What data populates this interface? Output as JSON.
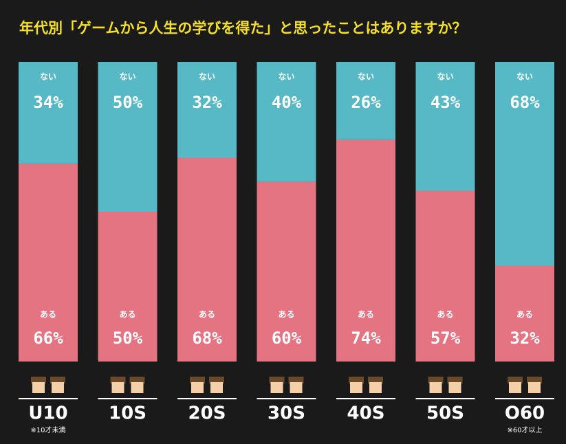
{
  "chart_data": {
    "type": "stacked_bar_100",
    "title": "年代別「ゲームから人生の学びを得た」と思ったことはありますか？",
    "categories": [
      "U10",
      "10S",
      "20S",
      "30S",
      "40S",
      "50S",
      "O60"
    ],
    "category_notes": [
      "※10才未満",
      null,
      null,
      null,
      null,
      null,
      "※60才以上"
    ],
    "ylim": [
      0,
      100
    ],
    "series": [
      {
        "name": "ある",
        "color": "#e57483",
        "values": [
          66,
          50,
          68,
          60,
          74,
          57,
          32
        ],
        "value_labels": [
          "66%",
          "50%",
          "68%",
          "60%",
          "74%",
          "57%",
          "32%"
        ]
      },
      {
        "name": "ない",
        "color": "#58b9c6",
        "values": [
          34,
          50,
          32,
          40,
          26,
          43,
          68
        ],
        "value_labels": [
          "34%",
          "50%",
          "32%",
          "40%",
          "26%",
          "43%",
          "68%"
        ]
      }
    ]
  }
}
